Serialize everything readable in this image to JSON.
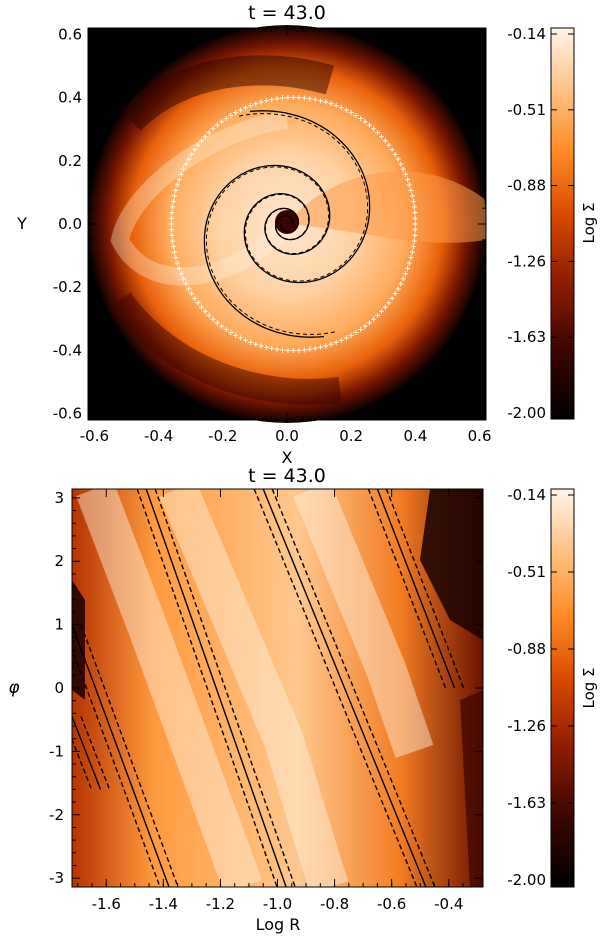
{
  "colors": {
    "colormap": [
      "#000000",
      "#3a0400",
      "#8e1c00",
      "#d84a00",
      "#ff8a22",
      "#ffc48a",
      "#fff4e8"
    ],
    "background": "#ffffff",
    "curve": "#000000",
    "markers": "#ffffff"
  },
  "chart_data": [
    {
      "type": "heatmap",
      "title": "t = 43.0",
      "xlabel": "X",
      "ylabel": "Y",
      "xlim": [
        -0.62,
        0.62
      ],
      "ylim": [
        -0.62,
        0.62
      ],
      "xticks": [
        "-0.6",
        "-0.4",
        "-0.2",
        "0.0",
        "0.2",
        "0.4",
        "0.6"
      ],
      "yticks": [
        "-0.6",
        "-0.4",
        "-0.2",
        "0.0",
        "0.2",
        "0.4",
        "0.6"
      ],
      "xtick_values": [
        -0.6,
        -0.4,
        -0.2,
        0.0,
        0.2,
        0.4,
        0.6
      ],
      "ytick_values": [
        -0.6,
        -0.4,
        -0.2,
        0.0,
        0.2,
        0.4,
        0.6
      ],
      "colorbar": {
        "label": "Log Σ",
        "range": [
          -2.0,
          -0.14
        ],
        "ticks": [
          "-2.00",
          "-1.63",
          "-1.26",
          "-0.88",
          "-0.51",
          "-0.14"
        ]
      },
      "disk_radius": 0.62,
      "marker_orbit": {
        "shape": "ellipse",
        "center": [
          0.02,
          0.0
        ],
        "radii": [
          0.38,
          0.4
        ]
      }
    },
    {
      "type": "heatmap",
      "title": "t = 43.0",
      "xlabel": "Log R",
      "ylabel": "φ",
      "xlim": [
        -1.72,
        -0.28
      ],
      "ylim": [
        -3.14,
        3.14
      ],
      "xticks": [
        "-1.6",
        "-1.4",
        "-1.2",
        "-1.0",
        "-0.8",
        "-0.6",
        "-0.4"
      ],
      "yticks": [
        "-3",
        "-2",
        "-1",
        "0",
        "1",
        "2",
        "3"
      ],
      "xtick_values": [
        -1.6,
        -1.4,
        -1.2,
        -1.0,
        -0.8,
        -0.6,
        -0.4
      ],
      "ytick_values": [
        -3,
        -2,
        -1,
        0,
        1,
        2,
        3
      ],
      "colorbar": {
        "label": "Log Σ",
        "range": [
          -2.0,
          -0.14
        ],
        "ticks": [
          "-2.00",
          "-1.63",
          "-1.26",
          "-0.88",
          "-0.51",
          "-0.14"
        ]
      },
      "spiral_arms": [
        {
          "points": [
            [
              -1.72,
              1.0
            ],
            [
              -1.38,
              -3.14
            ]
          ]
        },
        {
          "points": [
            [
              -1.46,
              3.14
            ],
            [
              -0.97,
              -3.14
            ]
          ]
        },
        {
          "points": [
            [
              -1.05,
              3.14
            ],
            [
              -0.48,
              -3.14
            ]
          ]
        },
        {
          "points": [
            [
              -0.65,
              3.14
            ],
            [
              -0.38,
              0.0
            ]
          ]
        },
        {
          "points": [
            [
              -1.72,
              -0.45
            ],
            [
              -1.62,
              -1.6
            ]
          ]
        }
      ],
      "bright_bands": [
        {
          "points": [
            [
              -1.64,
              3.14
            ],
            [
              -1.45,
              0.9
            ],
            [
              -1.12,
              -3.14
            ]
          ]
        },
        {
          "points": [
            [
              -1.35,
              3.14
            ],
            [
              -0.98,
              -0.8
            ],
            [
              -0.82,
              -3.14
            ]
          ]
        },
        {
          "points": [
            [
              -0.88,
              3.14
            ],
            [
              -0.62,
              0.3
            ],
            [
              -0.52,
              -1.0
            ]
          ]
        }
      ]
    }
  ]
}
